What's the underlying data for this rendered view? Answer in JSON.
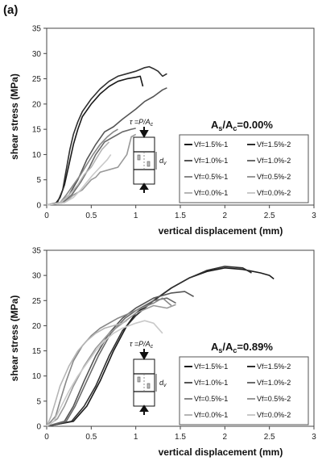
{
  "panel_label": "(a)",
  "chart_data": [
    {
      "type": "line",
      "xlabel": "vertical displacement (mm)",
      "ylabel": "shear stress (MPa)",
      "xlim": [
        0,
        3
      ],
      "ylim": [
        0,
        35
      ],
      "xticks": [
        "0",
        "0.5",
        "1",
        "1.5",
        "2",
        "2.5",
        "3"
      ],
      "yticks": [
        "0",
        "5",
        "10",
        "15",
        "20",
        "25",
        "30",
        "35"
      ],
      "annotation": {
        "main": "A",
        "sub1": "s",
        "mid": "/A",
        "sub2": "c",
        "value": "=0.00%"
      },
      "inset": {
        "tau_prefix": "τ =P/A",
        "tau_sub": "c",
        "dv_main": "d",
        "dv_sub": "v"
      },
      "legend_position": "center-right",
      "series": [
        {
          "name": "Vf=1.5%-1",
          "color": "#1a1a1a",
          "points": [
            [
              0,
              0
            ],
            [
              0.1,
              0.3
            ],
            [
              0.15,
              1.5
            ],
            [
              0.2,
              4
            ],
            [
              0.25,
              8
            ],
            [
              0.3,
              12
            ],
            [
              0.35,
              15
            ],
            [
              0.4,
              17.5
            ],
            [
              0.5,
              20
            ],
            [
              0.6,
              22
            ],
            [
              0.7,
              23.5
            ],
            [
              0.8,
              24.5
            ],
            [
              0.9,
              25
            ],
            [
              1.0,
              25.3
            ],
            [
              1.05,
              25.5
            ],
            [
              1.08,
              23.5
            ]
          ]
        },
        {
          "name": "Vf=1.5%-2",
          "color": "#2f2f2f",
          "points": [
            [
              0,
              0
            ],
            [
              0.12,
              0.5
            ],
            [
              0.18,
              3
            ],
            [
              0.22,
              7
            ],
            [
              0.26,
              11
            ],
            [
              0.3,
              14
            ],
            [
              0.35,
              16.5
            ],
            [
              0.4,
              18.5
            ],
            [
              0.5,
              21
            ],
            [
              0.6,
              23
            ],
            [
              0.7,
              24.5
            ],
            [
              0.8,
              25.5
            ],
            [
              0.9,
              26
            ],
            [
              1.0,
              26.5
            ],
            [
              1.1,
              27.2
            ],
            [
              1.15,
              27.4
            ],
            [
              1.2,
              27
            ],
            [
              1.25,
              26.5
            ],
            [
              1.3,
              25.5
            ],
            [
              1.35,
              26
            ]
          ]
        },
        {
          "name": "Vf=1.0%-1",
          "color": "#555555",
          "points": [
            [
              0,
              0
            ],
            [
              0.15,
              0.5
            ],
            [
              0.25,
              2
            ],
            [
              0.35,
              5
            ],
            [
              0.45,
              9
            ],
            [
              0.55,
              12
            ],
            [
              0.65,
              14.5
            ],
            [
              0.75,
              15.5
            ],
            [
              0.85,
              17
            ],
            [
              1.0,
              19
            ],
            [
              1.1,
              20.5
            ],
            [
              1.2,
              21.5
            ],
            [
              1.3,
              22.8
            ],
            [
              1.35,
              23.2
            ]
          ]
        },
        {
          "name": "Vf=1.0%-2",
          "color": "#6a6a6a",
          "points": [
            [
              0,
              0
            ],
            [
              0.18,
              0.5
            ],
            [
              0.28,
              2
            ],
            [
              0.38,
              4.5
            ],
            [
              0.48,
              7.5
            ],
            [
              0.55,
              10
            ],
            [
              0.65,
              12.5
            ],
            [
              0.75,
              13.5
            ],
            [
              0.85,
              14.5
            ],
            [
              0.95,
              15
            ],
            [
              1.0,
              15.2
            ]
          ]
        },
        {
          "name": "Vf=0.5%-1",
          "color": "#888888",
          "points": [
            [
              0,
              0
            ],
            [
              0.15,
              0.5
            ],
            [
              0.22,
              2
            ],
            [
              0.3,
              4
            ],
            [
              0.38,
              6
            ],
            [
              0.45,
              8
            ],
            [
              0.52,
              10
            ],
            [
              0.6,
              12
            ],
            [
              0.68,
              13.5
            ],
            [
              0.75,
              14.5
            ],
            [
              0.8,
              15
            ]
          ]
        },
        {
          "name": "Vf=0.5%-2",
          "color": "#999999",
          "points": [
            [
              0,
              0
            ],
            [
              0.2,
              0.5
            ],
            [
              0.3,
              2
            ],
            [
              0.4,
              3
            ],
            [
              0.5,
              5
            ],
            [
              0.55,
              5.5
            ],
            [
              0.6,
              6.5
            ],
            [
              0.7,
              7
            ],
            [
              0.8,
              7.5
            ],
            [
              0.9,
              10
            ],
            [
              0.95,
              13.5
            ],
            [
              1.0,
              14
            ]
          ]
        },
        {
          "name": "Vf=0.0%-1",
          "color": "#b5b5b5",
          "points": [
            [
              0,
              0
            ],
            [
              0.15,
              0.5
            ],
            [
              0.25,
              2
            ],
            [
              0.35,
              4
            ],
            [
              0.42,
              6
            ],
            [
              0.5,
              7.5
            ],
            [
              0.55,
              9
            ],
            [
              0.62,
              11
            ],
            [
              0.7,
              12.5
            ]
          ]
        },
        {
          "name": "Vf=0.0%-2",
          "color": "#c9c9c9",
          "points": [
            [
              0,
              0
            ],
            [
              0.2,
              0.5
            ],
            [
              0.3,
              1.5
            ],
            [
              0.38,
              3
            ],
            [
              0.45,
              4.5
            ],
            [
              0.52,
              6
            ],
            [
              0.6,
              7.5
            ],
            [
              0.68,
              9
            ],
            [
              0.72,
              10
            ]
          ]
        }
      ]
    },
    {
      "type": "line",
      "xlabel": "vertical displacement (mm)",
      "ylabel": "shear stress (MPa)",
      "xlim": [
        0,
        3
      ],
      "ylim": [
        0,
        35
      ],
      "xticks": [
        "0",
        "0.5",
        "1",
        "1.5",
        "2",
        "2.5",
        "3"
      ],
      "yticks": [
        "0",
        "5",
        "10",
        "15",
        "20",
        "25",
        "30",
        "35"
      ],
      "annotation": {
        "main": "A",
        "sub1": "s",
        "mid": "/A",
        "sub2": "c",
        "value": "=0.89%"
      },
      "inset": {
        "tau_prefix": "τ =P/A",
        "tau_sub": "c",
        "dv_main": "d",
        "dv_sub": "v"
      },
      "legend_position": "center-right",
      "series": [
        {
          "name": "Vf=1.5%-1",
          "color": "#1a1a1a",
          "points": [
            [
              0,
              0
            ],
            [
              0.3,
              1
            ],
            [
              0.45,
              4
            ],
            [
              0.6,
              9
            ],
            [
              0.75,
              15
            ],
            [
              0.9,
              20
            ],
            [
              1.0,
              22.5
            ],
            [
              1.2,
              25
            ],
            [
              1.4,
              27.5
            ],
            [
              1.6,
              29.5
            ],
            [
              1.8,
              30.8
            ],
            [
              2.0,
              31.5
            ],
            [
              2.2,
              31.2
            ],
            [
              2.4,
              30.5
            ],
            [
              2.5,
              30
            ],
            [
              2.55,
              29.3
            ]
          ]
        },
        {
          "name": "Vf=1.5%-2",
          "color": "#2f2f2f",
          "points": [
            [
              0,
              0
            ],
            [
              0.28,
              1
            ],
            [
              0.42,
              4
            ],
            [
              0.55,
              8
            ],
            [
              0.7,
              14
            ],
            [
              0.85,
              19
            ],
            [
              1.0,
              22
            ],
            [
              1.2,
              25
            ],
            [
              1.4,
              27.5
            ],
            [
              1.6,
              29.5
            ],
            [
              1.8,
              31
            ],
            [
              2.0,
              31.8
            ],
            [
              2.2,
              31.5
            ],
            [
              2.3,
              30.5
            ]
          ]
        },
        {
          "name": "Vf=1.0%-1",
          "color": "#555555",
          "points": [
            [
              0,
              0
            ],
            [
              0.2,
              1
            ],
            [
              0.3,
              4
            ],
            [
              0.42,
              9
            ],
            [
              0.55,
              14
            ],
            [
              0.7,
              18.5
            ],
            [
              0.85,
              21.5
            ],
            [
              1.0,
              23.5
            ],
            [
              1.2,
              25.5
            ],
            [
              1.4,
              26.5
            ],
            [
              1.55,
              26.8
            ],
            [
              1.65,
              25.8
            ]
          ]
        },
        {
          "name": "Vf=1.0%-2",
          "color": "#6a6a6a",
          "points": [
            [
              0,
              0
            ],
            [
              0.22,
              1
            ],
            [
              0.32,
              4
            ],
            [
              0.45,
              9
            ],
            [
              0.58,
              14
            ],
            [
              0.72,
              18.5
            ],
            [
              0.88,
              21.5
            ],
            [
              1.0,
              23
            ],
            [
              1.2,
              25
            ],
            [
              1.35,
              25.5
            ],
            [
              1.45,
              24.5
            ]
          ]
        },
        {
          "name": "Vf=0.5%-1",
          "color": "#888888",
          "points": [
            [
              0,
              0
            ],
            [
              0.1,
              2
            ],
            [
              0.15,
              5
            ],
            [
              0.22,
              9
            ],
            [
              0.3,
              13
            ],
            [
              0.4,
              16
            ],
            [
              0.5,
              18
            ],
            [
              0.6,
              19.5
            ],
            [
              0.8,
              21.5
            ],
            [
              1.0,
              23
            ],
            [
              1.2,
              24.5
            ],
            [
              1.3,
              25.5
            ],
            [
              1.4,
              24
            ]
          ]
        },
        {
          "name": "Vf=0.5%-2",
          "color": "#999999",
          "points": [
            [
              0,
              0
            ],
            [
              0.12,
              1.5
            ],
            [
              0.2,
              4
            ],
            [
              0.3,
              8
            ],
            [
              0.42,
              12
            ],
            [
              0.55,
              15.5
            ],
            [
              0.7,
              18.5
            ],
            [
              0.85,
              20.5
            ],
            [
              1.0,
              22.5
            ],
            [
              1.2,
              24
            ],
            [
              1.35,
              23.5
            ],
            [
              1.45,
              24.2
            ]
          ]
        },
        {
          "name": "Vf=0.0%-1",
          "color": "#b5b5b5",
          "points": [
            [
              0,
              0
            ],
            [
              0.05,
              2
            ],
            [
              0.1,
              5
            ],
            [
              0.15,
              8
            ],
            [
              0.25,
              12
            ],
            [
              0.35,
              15
            ],
            [
              0.45,
              17
            ],
            [
              0.55,
              18.5
            ],
            [
              0.65,
              19.5
            ],
            [
              0.75,
              20
            ],
            [
              0.85,
              20.5
            ],
            [
              0.9,
              21
            ]
          ]
        },
        {
          "name": "Vf=0.0%-2",
          "color": "#c9c9c9",
          "points": [
            [
              0,
              0
            ],
            [
              0.08,
              1
            ],
            [
              0.15,
              3.5
            ],
            [
              0.25,
              7
            ],
            [
              0.35,
              10
            ],
            [
              0.45,
              12.5
            ],
            [
              0.55,
              15
            ],
            [
              0.65,
              17
            ],
            [
              0.75,
              18.5
            ],
            [
              0.85,
              19.5
            ],
            [
              1.0,
              20.5
            ],
            [
              1.1,
              21
            ],
            [
              1.2,
              20.5
            ],
            [
              1.3,
              18.5
            ]
          ]
        }
      ]
    }
  ]
}
